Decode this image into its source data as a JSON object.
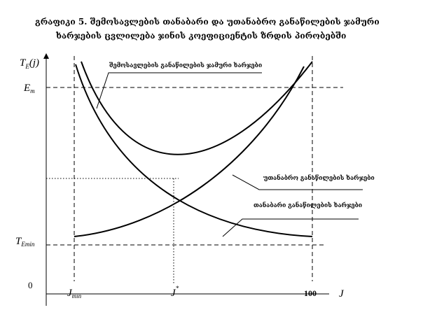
{
  "title_line1": "გრაფიკი 5. შემოსავლების თანაბარი და უთანაბრო განაწილების ჯამური",
  "title_line2": "ხარჯების ცვლილება ჯინის კოეფიციენტის ზრდის პირობებში",
  "chart_data": {
    "type": "line",
    "y_axis_label": {
      "main": "T",
      "sub": "E",
      "suffix": "(j)"
    },
    "x_axis_label": "J",
    "origin_label": "0",
    "y_ticks": [
      {
        "main": "E",
        "sub": "m"
      },
      {
        "main": "T",
        "sub": "Emin"
      }
    ],
    "x_ticks": [
      {
        "main": "J",
        "sub": "min"
      },
      {
        "main": "J",
        "sup": "*"
      },
      {
        "main": "100"
      }
    ],
    "series": [
      {
        "name": "შემოსავლების განაწილების ჯამური ხარჯები",
        "shape": "U-shaped, minimum at J*"
      },
      {
        "name": "უთანაბრო განაწილების ხარჯები",
        "shape": "increasing with J"
      },
      {
        "name": "თანაბარი განაწილების ხარჯები",
        "shape": "decreasing with J"
      }
    ]
  }
}
